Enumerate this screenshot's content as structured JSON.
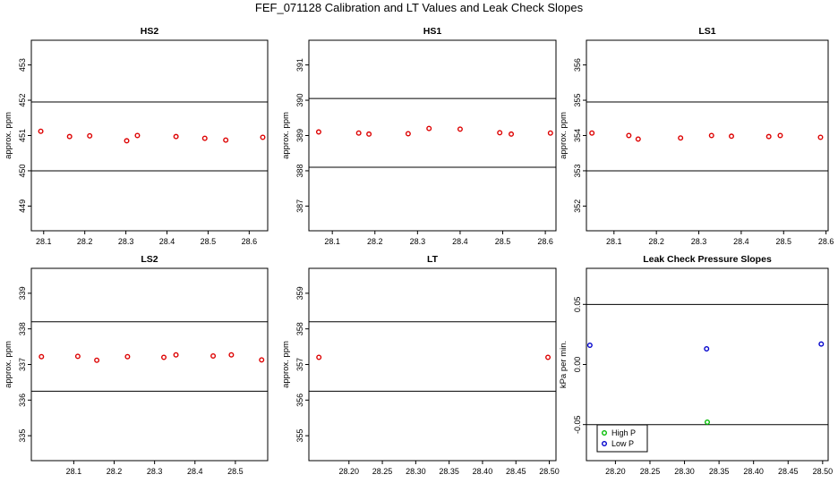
{
  "figure": {
    "title": "FEF_071128  Calibration and LT Values and Leak Check Slopes"
  },
  "chart_data": [
    {
      "type": "scatter",
      "title": "HS2",
      "ylabel": "approx. ppm",
      "xlim": [
        28.07,
        28.645
      ],
      "ylim": [
        448.3,
        453.7
      ],
      "xticks": [
        "28.1",
        "28.2",
        "28.3",
        "28.4",
        "28.5",
        "28.6"
      ],
      "yticks": [
        "449",
        "450",
        "451",
        "452",
        "453"
      ],
      "hlines": [
        450.0,
        451.95
      ],
      "legend": [],
      "series": [
        {
          "marker": "circle",
          "color": "#dd0000",
          "points": [
            [
              28.093,
              451.12
            ],
            [
              28.163,
              450.97
            ],
            [
              28.212,
              450.99
            ],
            [
              28.302,
              450.85
            ],
            [
              28.328,
              451.0
            ],
            [
              28.422,
              450.97
            ],
            [
              28.492,
              450.92
            ],
            [
              28.543,
              450.87
            ],
            [
              28.633,
              450.95
            ]
          ]
        }
      ]
    },
    {
      "type": "scatter",
      "title": "HS1",
      "ylabel": "approx. ppm",
      "xlim": [
        28.045,
        28.625
      ],
      "ylim": [
        386.3,
        391.7
      ],
      "xticks": [
        "28.1",
        "28.2",
        "28.3",
        "28.4",
        "28.5",
        "28.6"
      ],
      "yticks": [
        "387",
        "388",
        "389",
        "390",
        "391"
      ],
      "hlines": [
        388.1,
        390.05
      ],
      "legend": [],
      "series": [
        {
          "marker": "circle",
          "color": "#dd0000",
          "points": [
            [
              28.068,
              389.1
            ],
            [
              28.162,
              389.07
            ],
            [
              28.186,
              389.04
            ],
            [
              28.278,
              389.05
            ],
            [
              28.327,
              389.2
            ],
            [
              28.4,
              389.18
            ],
            [
              28.493,
              389.08
            ],
            [
              28.52,
              389.04
            ],
            [
              28.612,
              389.07
            ]
          ]
        }
      ]
    },
    {
      "type": "scatter",
      "title": "LS1",
      "ylabel": "approx. ppm",
      "xlim": [
        28.035,
        28.605
      ],
      "ylim": [
        351.3,
        356.7
      ],
      "xticks": [
        "28.1",
        "28.2",
        "28.3",
        "28.4",
        "28.5",
        "28.6"
      ],
      "yticks": [
        "352",
        "353",
        "354",
        "355",
        "356"
      ],
      "hlines": [
        353.0,
        354.95
      ],
      "legend": [],
      "series": [
        {
          "marker": "circle",
          "color": "#dd0000",
          "points": [
            [
              28.048,
              354.07
            ],
            [
              28.135,
              354.0
            ],
            [
              28.157,
              353.9
            ],
            [
              28.257,
              353.93
            ],
            [
              28.33,
              354.0
            ],
            [
              28.377,
              353.98
            ],
            [
              28.465,
              353.97
            ],
            [
              28.492,
              354.0
            ],
            [
              28.587,
              353.95
            ]
          ]
        }
      ]
    },
    {
      "type": "scatter",
      "title": "LS2",
      "ylabel": "approx. ppm",
      "xlim": [
        27.995,
        28.58
      ],
      "ylim": [
        334.3,
        339.7
      ],
      "xticks": [
        "28.1",
        "28.2",
        "28.3",
        "28.4",
        "28.5"
      ],
      "yticks": [
        "335",
        "336",
        "337",
        "338",
        "339"
      ],
      "hlines": [
        336.25,
        338.2
      ],
      "legend": [],
      "series": [
        {
          "marker": "circle",
          "color": "#dd0000",
          "points": [
            [
              28.02,
              337.22
            ],
            [
              28.11,
              337.23
            ],
            [
              28.157,
              337.12
            ],
            [
              28.233,
              337.22
            ],
            [
              28.323,
              337.2
            ],
            [
              28.353,
              337.27
            ],
            [
              28.445,
              337.24
            ],
            [
              28.49,
              337.27
            ],
            [
              28.565,
              337.13
            ]
          ]
        }
      ]
    },
    {
      "type": "scatter",
      "title": "LT",
      "ylabel": "approx. ppm",
      "xlim": [
        28.14,
        28.51
      ],
      "ylim": [
        354.3,
        359.7
      ],
      "xticks": [
        "28.20",
        "28.25",
        "28.30",
        "28.35",
        "28.40",
        "28.45",
        "28.50"
      ],
      "yticks": [
        "355",
        "356",
        "357",
        "358",
        "359"
      ],
      "hlines": [
        356.25,
        358.2
      ],
      "legend": [],
      "series": [
        {
          "marker": "circle",
          "color": "#dd0000",
          "points": [
            [
              28.155,
              357.2
            ],
            [
              28.498,
              357.2
            ]
          ]
        }
      ]
    },
    {
      "type": "scatter",
      "title": "Leak Check Pressure Slopes",
      "ylabel": "kPa per min.",
      "xlim": [
        28.158,
        28.508
      ],
      "ylim": [
        -0.08,
        0.08
      ],
      "xticks": [
        "28.20",
        "28.25",
        "28.30",
        "28.35",
        "28.40",
        "28.45",
        "28.50"
      ],
      "yticks": [
        "-0.05",
        "0.00",
        "0.05"
      ],
      "hlines": [
        -0.05,
        0.05
      ],
      "legend": [
        {
          "label": "High P",
          "color": "#00bb00"
        },
        {
          "label": "Low P",
          "color": "#0000cc"
        }
      ],
      "legend_position": "bottom-left",
      "series": [
        {
          "name": "High P",
          "marker": "circle",
          "color": "#00bb00",
          "points": [
            [
              28.333,
              -0.048
            ]
          ]
        },
        {
          "name": "Low P",
          "marker": "circle",
          "color": "#0000cc",
          "points": [
            [
              28.163,
              0.016
            ],
            [
              28.332,
              0.013
            ],
            [
              28.498,
              0.017
            ]
          ]
        }
      ]
    }
  ]
}
